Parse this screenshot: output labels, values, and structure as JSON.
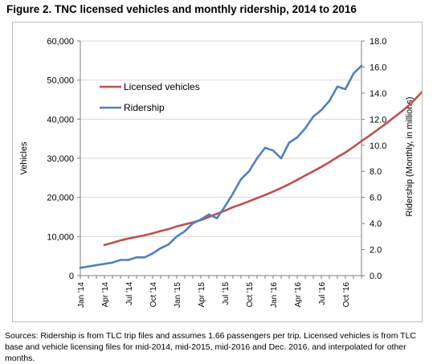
{
  "figure": {
    "title": "Figure 2. TNC licensed vehicles and monthly ridership, 2014 to 2016",
    "source_note": "Sources: Ridership is from TLC trip files and assumes 1.66 passengers per trip.  Licensed vehicles is from  TLC base and vehicle licensing files for mid-2014, mid-2015, mid-2016 and Dec. 2016, and interpolated for other months."
  },
  "chart_data": {
    "type": "line",
    "x_labels": [
      "Jan '14",
      "Apr '14",
      "Jul '14",
      "Oct '14",
      "Jan '15",
      "Apr '15",
      "Jul '15",
      "Oct '15",
      "Jan '16",
      "Apr '16",
      "Jul '16",
      "Oct '16"
    ],
    "x_start": "Jan 2014",
    "x_end": "Dec 2016",
    "ylabel": "Vehicles",
    "y2label": "Ridership (Monthly, in millions)",
    "ylim": [
      0,
      60000
    ],
    "y2lim": [
      0,
      18
    ],
    "y_ticks": [
      "0",
      "10,000",
      "20,000",
      "30,000",
      "40,000",
      "50,000",
      "60,000"
    ],
    "y2_ticks": [
      "0.0",
      "2.0",
      "4.0",
      "6.0",
      "8.0",
      "10.0",
      "12.0",
      "14.0",
      "16.0",
      "18.0"
    ],
    "grid": "horizontal",
    "legend_position": "upper-left",
    "series": [
      {
        "name": "Licensed vehicles",
        "axis": "left",
        "color": "#c0504d",
        "start": "Apr 2014",
        "values": [
          7800,
          8400,
          9000,
          9500,
          9900,
          10300,
          10800,
          11400,
          11900,
          12600,
          13100,
          13600,
          14200,
          15000,
          15800,
          16600,
          17500,
          18200,
          19000,
          19800,
          20600,
          21500,
          22400,
          23400,
          24500,
          25600,
          26700,
          27800,
          29000,
          30300,
          31500,
          32900,
          34400,
          35800,
          37300,
          38800,
          40400,
          42000,
          43700,
          45800,
          48000
        ]
      },
      {
        "name": "Ridership",
        "axis": "right",
        "color": "#4f81bd",
        "start": "Jan 2014",
        "values": [
          0.6,
          0.7,
          0.8,
          0.9,
          1.0,
          1.2,
          1.2,
          1.4,
          1.4,
          1.7,
          2.1,
          2.4,
          3.0,
          3.4,
          4.0,
          4.3,
          4.7,
          4.4,
          5.3,
          6.3,
          7.4,
          8.0,
          9.0,
          9.8,
          9.6,
          9.0,
          10.2,
          10.6,
          11.3,
          12.2,
          12.7,
          13.4,
          14.5,
          14.3,
          15.5,
          16.1
        ]
      }
    ]
  }
}
